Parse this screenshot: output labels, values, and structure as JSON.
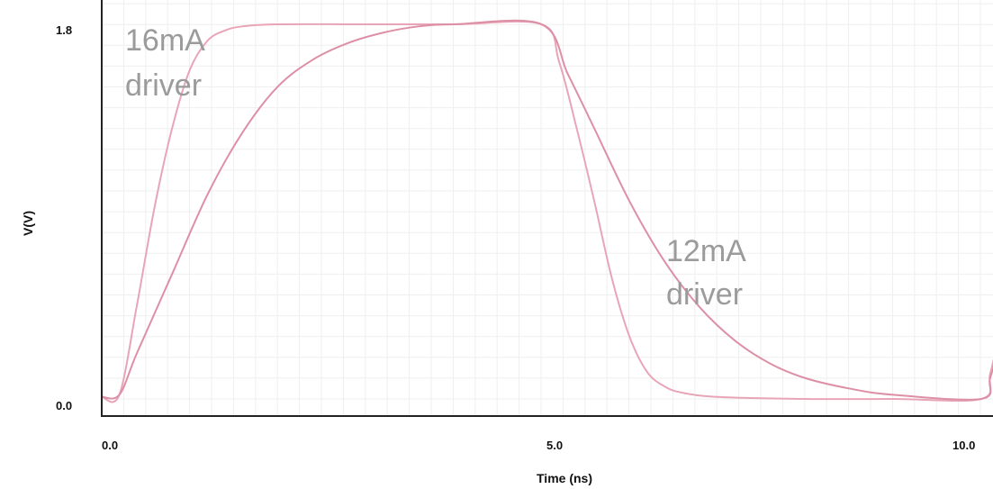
{
  "chart_data": {
    "type": "line",
    "xlabel": "Time (ns)",
    "ylabel": "V(V)",
    "xlim": [
      0.0,
      10.0
    ],
    "ylim": [
      0.0,
      1.8
    ],
    "x_ticks": [
      "0.0",
      "5.0",
      "10.0"
    ],
    "y_ticks": [
      "0.0",
      "1.8"
    ],
    "grid": true,
    "annotations": [
      {
        "line1": "16mA",
        "line2": "driver"
      },
      {
        "line1": "12mA",
        "line2": "driver"
      }
    ],
    "series": [
      {
        "color": "#e8a5b8",
        "x": [
          0.0,
          0.2,
          0.4,
          0.6,
          0.8,
          1.0,
          1.2,
          1.4,
          1.6,
          2.0,
          3.0,
          4.0,
          5.0,
          5.2,
          5.4,
          5.6,
          5.8,
          6.0,
          6.2,
          6.4,
          6.6,
          7.0,
          8.0,
          9.0,
          10.0,
          10.1,
          10.2
        ],
        "y": [
          0.01,
          0.02,
          0.45,
          0.92,
          1.3,
          1.58,
          1.72,
          1.77,
          1.79,
          1.8,
          1.8,
          1.8,
          1.8,
          1.62,
          1.3,
          0.95,
          0.58,
          0.3,
          0.13,
          0.06,
          0.03,
          0.01,
          0.0,
          0.0,
          0.0,
          0.12,
          0.3
        ]
      },
      {
        "color": "#dd8fa6",
        "x": [
          0.0,
          0.2,
          0.4,
          0.8,
          1.2,
          1.6,
          2.0,
          2.4,
          2.8,
          3.2,
          3.6,
          4.0,
          5.0,
          5.3,
          5.6,
          6.0,
          6.4,
          6.8,
          7.2,
          7.6,
          8.0,
          8.5,
          9.0,
          10.0,
          10.1,
          10.2
        ],
        "y": [
          0.01,
          0.02,
          0.22,
          0.6,
          0.98,
          1.28,
          1.5,
          1.63,
          1.71,
          1.76,
          1.79,
          1.8,
          1.8,
          1.56,
          1.3,
          0.95,
          0.66,
          0.44,
          0.28,
          0.17,
          0.1,
          0.05,
          0.02,
          0.0,
          0.1,
          0.25
        ]
      }
    ]
  }
}
